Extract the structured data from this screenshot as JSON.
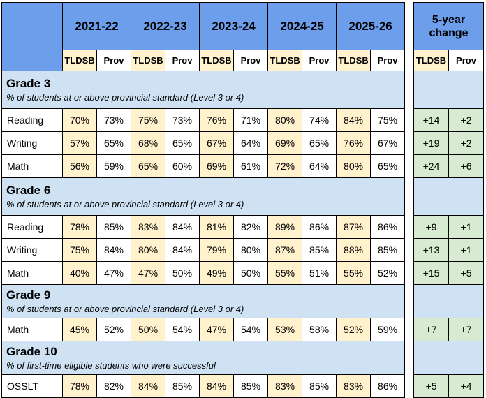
{
  "years": [
    "2021-22",
    "2022-23",
    "2023-24",
    "2024-25",
    "2025-26"
  ],
  "sub_headers": {
    "tldsb": "TLDSB",
    "prov": "Prov"
  },
  "change_header": {
    "line1": "5-year",
    "line2": "change"
  },
  "colors": {
    "header_blue": "#6d9eeb",
    "section_blue": "#cfe2f3",
    "tldsb_yellow": "#fff2cc",
    "change_green": "#d9ead3"
  },
  "sections": [
    {
      "title": "Grade 3",
      "subtitle": "% of students at or above provincial standard (Level 3 or 4)",
      "rows": [
        {
          "label": "Reading",
          "values": [
            "70%",
            "73%",
            "75%",
            "73%",
            "76%",
            "71%",
            "80%",
            "74%",
            "84%",
            "75%"
          ],
          "change": [
            "+14",
            "+2"
          ]
        },
        {
          "label": "Writing",
          "values": [
            "57%",
            "65%",
            "68%",
            "65%",
            "67%",
            "64%",
            "69%",
            "65%",
            "76%",
            "67%"
          ],
          "change": [
            "+19",
            "+2"
          ]
        },
        {
          "label": "Math",
          "values": [
            "56%",
            "59%",
            "65%",
            "60%",
            "69%",
            "61%",
            "72%",
            "64%",
            "80%",
            "65%"
          ],
          "change": [
            "+24",
            "+6"
          ]
        }
      ]
    },
    {
      "title": "Grade 6",
      "subtitle": "% of students at or above provincial standard (Level 3 or 4)",
      "rows": [
        {
          "label": "Reading",
          "values": [
            "78%",
            "85%",
            "83%",
            "84%",
            "81%",
            "82%",
            "89%",
            "86%",
            "87%",
            "86%"
          ],
          "change": [
            "+9",
            "+1"
          ]
        },
        {
          "label": "Writing",
          "values": [
            "75%",
            "84%",
            "80%",
            "84%",
            "79%",
            "80%",
            "87%",
            "85%",
            "88%",
            "85%"
          ],
          "change": [
            "+13",
            "+1"
          ]
        },
        {
          "label": "Math",
          "values": [
            "40%",
            "47%",
            "47%",
            "50%",
            "49%",
            "50%",
            "55%",
            "51%",
            "55%",
            "52%"
          ],
          "change": [
            "+15",
            "+5"
          ]
        }
      ]
    },
    {
      "title": "Grade 9",
      "subtitle": "% of students at or above provincial standard (Level 3 or 4)",
      "rows": [
        {
          "label": "Math",
          "values": [
            "45%",
            "52%",
            "50%",
            "54%",
            "47%",
            "54%",
            "53%",
            "58%",
            "52%",
            "59%"
          ],
          "change": [
            "+7",
            "+7"
          ]
        }
      ]
    },
    {
      "title": "Grade 10",
      "subtitle": "% of first-time eligible students who were successful",
      "rows": [
        {
          "label": "OSSLT",
          "values": [
            "78%",
            "82%",
            "84%",
            "85%",
            "84%",
            "85%",
            "83%",
            "85%",
            "83%",
            "86%"
          ],
          "change": [
            "+5",
            "+4"
          ]
        }
      ]
    }
  ]
}
